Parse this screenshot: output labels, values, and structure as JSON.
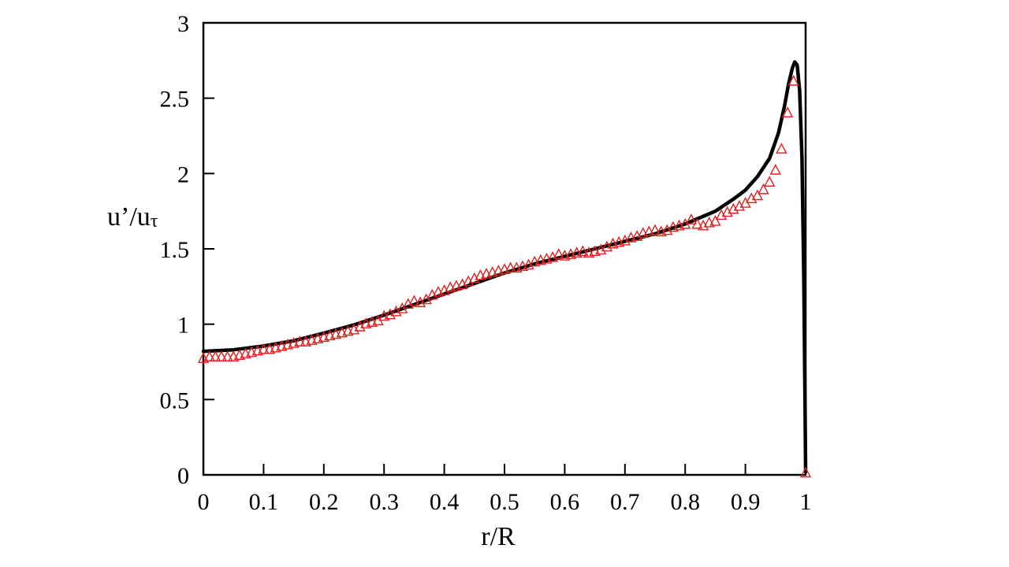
{
  "chart_data": {
    "type": "line",
    "title": "",
    "xlabel": "r/R",
    "ylabel_main": "u’/u",
    "ylabel_sub": "τ",
    "xlim": [
      0,
      1
    ],
    "ylim": [
      0,
      3
    ],
    "grid": false,
    "legend": "none",
    "x_ticks": [
      0,
      0.1,
      0.2,
      0.3,
      0.4,
      0.5,
      0.6,
      0.7,
      0.8,
      0.9,
      1
    ],
    "x_tick_labels": [
      "0",
      "0.1",
      "0.2",
      "0.3",
      "0.4",
      "0.5",
      "0.6",
      "0.7",
      "0.8",
      "0.9",
      "1"
    ],
    "y_ticks": [
      0,
      0.5,
      1,
      1.5,
      2,
      2.5,
      3
    ],
    "y_tick_labels": [
      "0",
      "0.5",
      "1",
      "1.5",
      "2",
      "2.5",
      "3"
    ],
    "series": [
      {
        "style": "line",
        "color": "#000000",
        "points": [
          [
            0.0,
            0.82
          ],
          [
            0.05,
            0.83
          ],
          [
            0.1,
            0.855
          ],
          [
            0.15,
            0.89
          ],
          [
            0.2,
            0.94
          ],
          [
            0.25,
            0.995
          ],
          [
            0.3,
            1.06
          ],
          [
            0.35,
            1.13
          ],
          [
            0.4,
            1.2
          ],
          [
            0.45,
            1.27
          ],
          [
            0.5,
            1.34
          ],
          [
            0.55,
            1.4
          ],
          [
            0.6,
            1.45
          ],
          [
            0.65,
            1.5
          ],
          [
            0.7,
            1.55
          ],
          [
            0.75,
            1.6
          ],
          [
            0.8,
            1.665
          ],
          [
            0.85,
            1.75
          ],
          [
            0.88,
            1.83
          ],
          [
            0.9,
            1.89
          ],
          [
            0.92,
            1.98
          ],
          [
            0.94,
            2.1
          ],
          [
            0.955,
            2.27
          ],
          [
            0.965,
            2.45
          ],
          [
            0.972,
            2.6
          ],
          [
            0.978,
            2.7
          ],
          [
            0.982,
            2.74
          ],
          [
            0.986,
            2.72
          ],
          [
            0.99,
            2.55
          ],
          [
            0.994,
            2.1
          ],
          [
            0.997,
            1.3
          ],
          [
            0.999,
            0.5
          ],
          [
            1.0,
            0.02
          ]
        ]
      },
      {
        "style": "marker-triangle",
        "color": "#e02020",
        "points": [
          [
            0.0,
            0.77
          ],
          [
            0.01,
            0.78
          ],
          [
            0.02,
            0.78
          ],
          [
            0.03,
            0.78
          ],
          [
            0.04,
            0.78
          ],
          [
            0.05,
            0.78
          ],
          [
            0.06,
            0.79
          ],
          [
            0.07,
            0.8
          ],
          [
            0.08,
            0.81
          ],
          [
            0.09,
            0.82
          ],
          [
            0.1,
            0.83
          ],
          [
            0.11,
            0.83
          ],
          [
            0.12,
            0.84
          ],
          [
            0.13,
            0.85
          ],
          [
            0.14,
            0.86
          ],
          [
            0.15,
            0.87
          ],
          [
            0.16,
            0.88
          ],
          [
            0.17,
            0.88
          ],
          [
            0.18,
            0.89
          ],
          [
            0.19,
            0.9
          ],
          [
            0.2,
            0.91
          ],
          [
            0.21,
            0.92
          ],
          [
            0.22,
            0.93
          ],
          [
            0.23,
            0.94
          ],
          [
            0.24,
            0.95
          ],
          [
            0.25,
            0.96
          ],
          [
            0.26,
            0.98
          ],
          [
            0.27,
            1.0
          ],
          [
            0.28,
            1.01
          ],
          [
            0.29,
            1.02
          ],
          [
            0.3,
            1.05
          ],
          [
            0.31,
            1.06
          ],
          [
            0.32,
            1.08
          ],
          [
            0.33,
            1.1
          ],
          [
            0.34,
            1.13
          ],
          [
            0.35,
            1.15
          ],
          [
            0.36,
            1.14
          ],
          [
            0.37,
            1.16
          ],
          [
            0.38,
            1.19
          ],
          [
            0.39,
            1.21
          ],
          [
            0.4,
            1.22
          ],
          [
            0.41,
            1.24
          ],
          [
            0.42,
            1.25
          ],
          [
            0.43,
            1.26
          ],
          [
            0.44,
            1.28
          ],
          [
            0.45,
            1.3
          ],
          [
            0.46,
            1.32
          ],
          [
            0.47,
            1.33
          ],
          [
            0.48,
            1.34
          ],
          [
            0.49,
            1.35
          ],
          [
            0.5,
            1.36
          ],
          [
            0.51,
            1.37
          ],
          [
            0.52,
            1.37
          ],
          [
            0.53,
            1.38
          ],
          [
            0.54,
            1.39
          ],
          [
            0.55,
            1.41
          ],
          [
            0.56,
            1.42
          ],
          [
            0.57,
            1.43
          ],
          [
            0.58,
            1.44
          ],
          [
            0.59,
            1.46
          ],
          [
            0.6,
            1.45
          ],
          [
            0.61,
            1.46
          ],
          [
            0.62,
            1.47
          ],
          [
            0.63,
            1.48
          ],
          [
            0.64,
            1.47
          ],
          [
            0.65,
            1.48
          ],
          [
            0.66,
            1.49
          ],
          [
            0.67,
            1.51
          ],
          [
            0.68,
            1.53
          ],
          [
            0.69,
            1.54
          ],
          [
            0.7,
            1.55
          ],
          [
            0.71,
            1.57
          ],
          [
            0.72,
            1.58
          ],
          [
            0.73,
            1.6
          ],
          [
            0.74,
            1.61
          ],
          [
            0.75,
            1.62
          ],
          [
            0.76,
            1.61
          ],
          [
            0.77,
            1.62
          ],
          [
            0.78,
            1.64
          ],
          [
            0.79,
            1.65
          ],
          [
            0.8,
            1.66
          ],
          [
            0.81,
            1.69
          ],
          [
            0.82,
            1.66
          ],
          [
            0.83,
            1.65
          ],
          [
            0.84,
            1.67
          ],
          [
            0.85,
            1.68
          ],
          [
            0.86,
            1.72
          ],
          [
            0.87,
            1.74
          ],
          [
            0.88,
            1.76
          ],
          [
            0.89,
            1.78
          ],
          [
            0.9,
            1.8
          ],
          [
            0.91,
            1.83
          ],
          [
            0.92,
            1.85
          ],
          [
            0.93,
            1.89
          ],
          [
            0.94,
            1.94
          ],
          [
            0.95,
            2.02
          ],
          [
            0.96,
            2.16
          ],
          [
            0.97,
            2.4
          ],
          [
            0.98,
            2.61
          ],
          [
            1.0,
            0.01
          ]
        ]
      }
    ]
  }
}
